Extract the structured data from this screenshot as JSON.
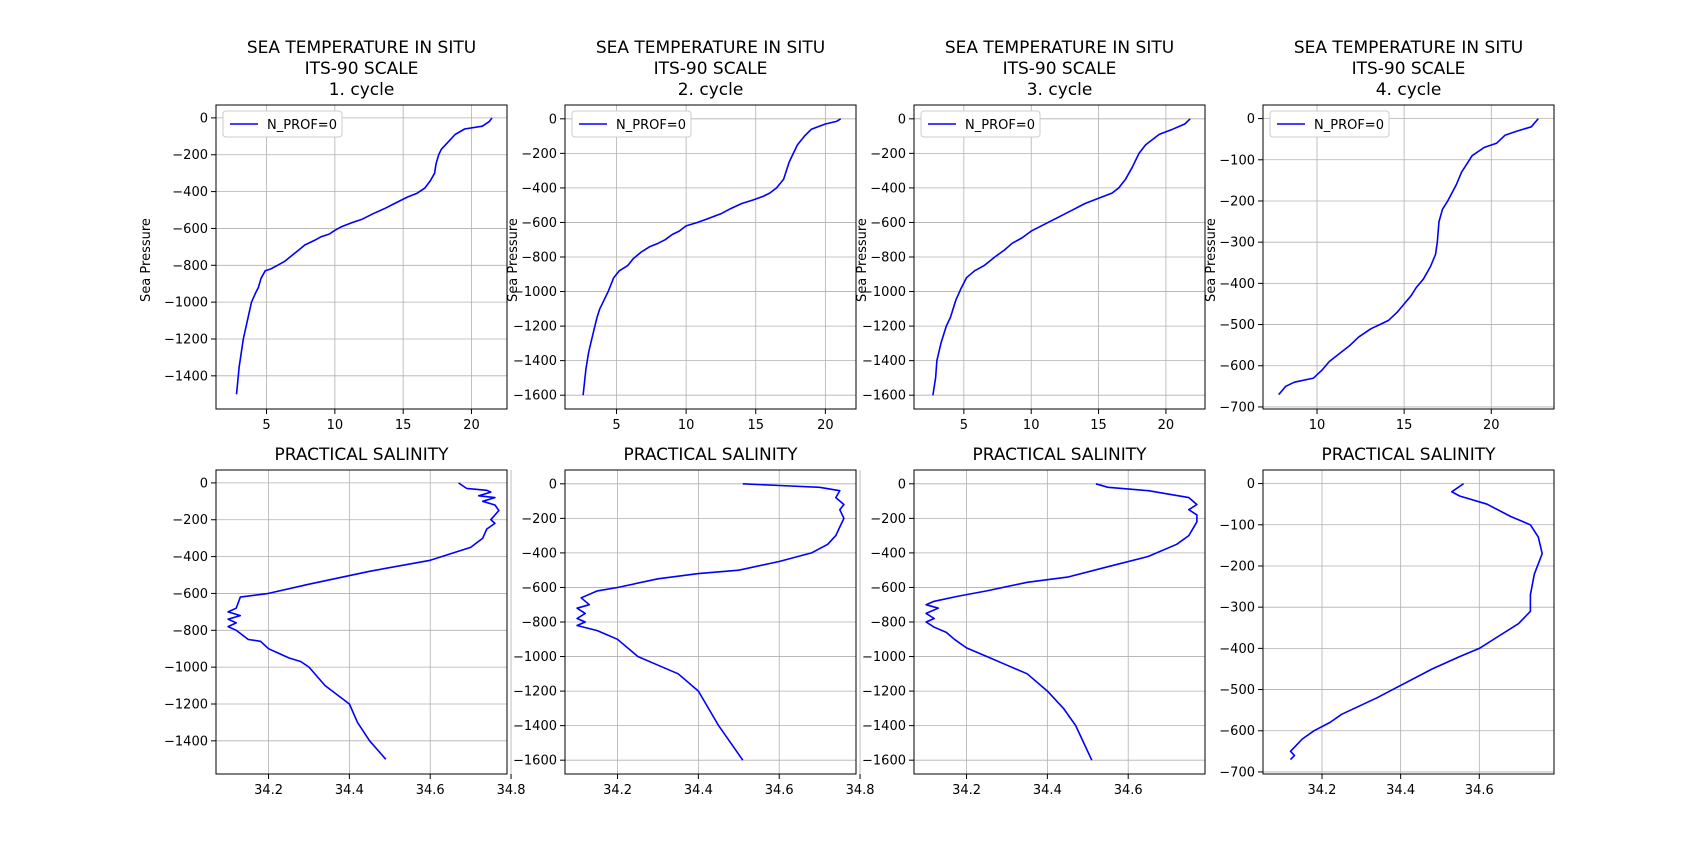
{
  "colors": {
    "series": "#0000ff",
    "grid": "#b0b0b0",
    "legend_border": "#cccccc"
  },
  "chart_data": [
    {
      "type": "line",
      "title": [
        "SEA TEMPERATURE IN SITU",
        "ITS-90 SCALE",
        "1. cycle"
      ],
      "ylabel": "Sea Pressure",
      "xlabel": "",
      "xlim": [
        1.3,
        22.6
      ],
      "ylim": [
        -1580,
        70
      ],
      "xticks": [
        5,
        10,
        15,
        20
      ],
      "yticks": [
        0,
        -200,
        -400,
        -600,
        -800,
        -1000,
        -1200,
        -1400
      ],
      "grid": true,
      "legend": {
        "position": "upper left",
        "entries": [
          "N_PROF=0"
        ]
      },
      "series": [
        {
          "name": "N_PROF=0",
          "x": [
            21.5,
            21.3,
            20.8,
            19.5,
            18.8,
            18.3,
            17.8,
            17.6,
            17.4,
            17.3,
            17.0,
            16.6,
            16.0,
            15.3,
            14.5,
            13.7,
            12.8,
            12.0,
            11.2,
            10.5,
            10.0,
            9.6,
            9.0,
            8.5,
            7.8,
            7.3,
            6.8,
            6.3,
            5.8,
            5.3,
            4.9,
            4.6,
            4.4,
            4.2,
            3.9,
            3.6,
            3.3,
            3.0,
            2.8
          ],
          "y": [
            0,
            -20,
            -45,
            -60,
            -90,
            -130,
            -170,
            -200,
            -250,
            -300,
            -340,
            -380,
            -410,
            -430,
            -460,
            -490,
            -520,
            -550,
            -570,
            -590,
            -610,
            -630,
            -645,
            -665,
            -690,
            -720,
            -750,
            -780,
            -800,
            -820,
            -830,
            -870,
            -920,
            -950,
            -1000,
            -1100,
            -1200,
            -1350,
            -1500
          ]
        }
      ]
    },
    {
      "type": "line",
      "title": [
        "SEA TEMPERATURE IN SITU",
        "ITS-90 SCALE",
        "2. cycle"
      ],
      "ylabel": "Sea Pressure",
      "xlabel": "",
      "xlim": [
        1.3,
        22.2
      ],
      "ylim": [
        -1680,
        80
      ],
      "xticks": [
        5,
        10,
        15,
        20
      ],
      "yticks": [
        0,
        -200,
        -400,
        -600,
        -800,
        -1000,
        -1200,
        -1400,
        -1600
      ],
      "grid": true,
      "legend": {
        "position": "upper left",
        "entries": [
          "N_PROF=0"
        ]
      },
      "series": [
        {
          "name": "N_PROF=0",
          "x": [
            21.1,
            20.8,
            20.0,
            19.0,
            18.5,
            18.0,
            17.7,
            17.4,
            17.2,
            17.0,
            16.5,
            16.0,
            15.5,
            14.8,
            14.0,
            13.2,
            12.5,
            11.5,
            10.8,
            10.0,
            9.5,
            9.0,
            8.5,
            8.0,
            7.4,
            6.8,
            6.2,
            5.8,
            5.2,
            4.8,
            4.4,
            4.1,
            3.8,
            3.6,
            3.3,
            3.0,
            2.8,
            2.6
          ],
          "y": [
            0,
            -15,
            -30,
            -60,
            -100,
            -150,
            -200,
            -250,
            -300,
            -350,
            -400,
            -430,
            -450,
            -470,
            -490,
            -520,
            -550,
            -580,
            -600,
            -620,
            -650,
            -670,
            -700,
            -720,
            -740,
            -770,
            -810,
            -850,
            -880,
            -920,
            -1000,
            -1050,
            -1100,
            -1150,
            -1250,
            -1350,
            -1450,
            -1600
          ]
        }
      ]
    },
    {
      "type": "line",
      "title": [
        "SEA TEMPERATURE IN SITU",
        "ITS-90 SCALE",
        "3. cycle"
      ],
      "ylabel": "Sea Pressure",
      "xlabel": "",
      "xlim": [
        1.3,
        22.9
      ],
      "ylim": [
        -1680,
        80
      ],
      "xticks": [
        5,
        10,
        15,
        20
      ],
      "yticks": [
        0,
        -200,
        -400,
        -600,
        -800,
        -1000,
        -1200,
        -1400,
        -1600
      ],
      "grid": true,
      "legend": {
        "position": "upper left",
        "entries": [
          "N_PROF=0"
        ]
      },
      "series": [
        {
          "name": "N_PROF=0",
          "x": [
            21.8,
            21.4,
            20.5,
            19.5,
            18.5,
            18.0,
            17.5,
            17.0,
            16.5,
            16.0,
            15.0,
            14.0,
            13.0,
            12.0,
            11.0,
            10.0,
            9.3,
            8.6,
            8.0,
            7.3,
            6.5,
            5.8,
            5.2,
            4.8,
            4.4,
            4.0,
            3.7,
            3.3,
            3.0,
            2.9,
            2.7
          ],
          "y": [
            0,
            -30,
            -60,
            -90,
            -150,
            -200,
            -280,
            -350,
            -400,
            -430,
            -460,
            -490,
            -530,
            -570,
            -610,
            -650,
            -690,
            -720,
            -760,
            -800,
            -850,
            -880,
            -920,
            -980,
            -1050,
            -1150,
            -1200,
            -1300,
            -1400,
            -1500,
            -1600
          ]
        }
      ]
    },
    {
      "type": "line",
      "title": [
        "SEA TEMPERATURE IN SITU",
        "ITS-90 SCALE",
        "4. cycle"
      ],
      "ylabel": "Sea Pressure",
      "xlabel": "",
      "xlim": [
        6.9,
        23.6
      ],
      "ylim": [
        -705,
        33
      ],
      "xticks": [
        10,
        15,
        20
      ],
      "yticks": [
        0,
        -100,
        -200,
        -300,
        -400,
        -500,
        -600,
        -700
      ],
      "grid": true,
      "legend": {
        "position": "upper left",
        "entries": [
          "N_PROF=0"
        ]
      },
      "series": [
        {
          "name": "N_PROF=0",
          "x": [
            22.7,
            22.3,
            21.5,
            20.8,
            20.3,
            19.6,
            18.9,
            18.6,
            18.3,
            18.0,
            17.5,
            17.2,
            17.0,
            16.9,
            16.8,
            16.5,
            16.1,
            15.7,
            15.4,
            15.0,
            14.6,
            14.1,
            13.6,
            13.1,
            12.4,
            11.9,
            11.3,
            10.7,
            10.3,
            9.8,
            8.7,
            8.2,
            8.0,
            7.8
          ],
          "y": [
            0,
            -20,
            -30,
            -40,
            -60,
            -70,
            -90,
            -110,
            -130,
            -160,
            -200,
            -220,
            -250,
            -300,
            -330,
            -360,
            -390,
            -410,
            -430,
            -450,
            -470,
            -490,
            -500,
            -510,
            -530,
            -550,
            -570,
            -590,
            -610,
            -630,
            -640,
            -650,
            -660,
            -670
          ]
        }
      ]
    },
    {
      "type": "line",
      "title": [
        "PRACTICAL SALINITY"
      ],
      "ylabel": "",
      "xlabel": "",
      "xlim": [
        34.07,
        34.79
      ],
      "ylim": [
        -1580,
        70
      ],
      "xticks": [
        34.2,
        34.4,
        34.6,
        34.8
      ],
      "yticks": [
        0,
        -200,
        -400,
        -600,
        -800,
        -1000,
        -1200,
        -1400
      ],
      "grid": true,
      "series": [
        {
          "name": "",
          "x": [
            34.67,
            34.69,
            34.74,
            34.75,
            34.72,
            34.76,
            34.73,
            34.76,
            34.77,
            34.75,
            34.76,
            34.74,
            34.73,
            34.7,
            34.6,
            34.45,
            34.3,
            34.2,
            34.13,
            34.12,
            34.1,
            34.13,
            34.1,
            34.12,
            34.1,
            34.12,
            34.15,
            34.18,
            34.2,
            34.22,
            34.25,
            34.28,
            34.3,
            34.34,
            34.4,
            34.42,
            34.45,
            34.49
          ],
          "y": [
            0,
            -30,
            -40,
            -50,
            -70,
            -80,
            -100,
            -120,
            -150,
            -200,
            -220,
            -250,
            -300,
            -350,
            -420,
            -480,
            -550,
            -600,
            -620,
            -680,
            -700,
            -720,
            -740,
            -760,
            -780,
            -800,
            -850,
            -860,
            -900,
            -920,
            -950,
            -970,
            -1000,
            -1100,
            -1200,
            -1300,
            -1400,
            -1500
          ]
        }
      ]
    },
    {
      "type": "line",
      "title": [
        "PRACTICAL SALINITY"
      ],
      "ylabel": "",
      "xlabel": "",
      "xlim": [
        34.07,
        34.79
      ],
      "ylim": [
        -1680,
        80
      ],
      "xticks": [
        34.2,
        34.4,
        34.6,
        34.8
      ],
      "yticks": [
        0,
        -200,
        -400,
        -600,
        -800,
        -1000,
        -1200,
        -1400,
        -1600
      ],
      "grid": true,
      "series": [
        {
          "name": "",
          "x": [
            34.51,
            34.6,
            34.7,
            34.75,
            34.74,
            34.76,
            34.75,
            34.76,
            34.75,
            34.74,
            34.72,
            34.68,
            34.6,
            34.5,
            34.4,
            34.3,
            34.2,
            34.15,
            34.11,
            34.13,
            34.1,
            34.12,
            34.1,
            34.12,
            34.1,
            34.15,
            34.2,
            34.25,
            34.3,
            34.35,
            34.4,
            34.45,
            34.51
          ],
          "y": [
            0,
            -10,
            -20,
            -40,
            -80,
            -120,
            -150,
            -200,
            -250,
            -300,
            -350,
            -400,
            -450,
            -500,
            -520,
            -550,
            -600,
            -620,
            -660,
            -700,
            -720,
            -750,
            -780,
            -800,
            -820,
            -850,
            -900,
            -1000,
            -1050,
            -1100,
            -1200,
            -1400,
            -1600
          ]
        }
      ]
    },
    {
      "type": "line",
      "title": [
        "PRACTICAL SALINITY"
      ],
      "ylabel": "",
      "xlabel": "",
      "xlim": [
        34.07,
        34.79
      ],
      "ylim": [
        -1680,
        80
      ],
      "xticks": [
        34.2,
        34.4,
        34.6
      ],
      "yticks": [
        0,
        -200,
        -400,
        -600,
        -800,
        -1000,
        -1200,
        -1400,
        -1600
      ],
      "grid": true,
      "series": [
        {
          "name": "",
          "x": [
            34.52,
            34.55,
            34.65,
            34.75,
            34.77,
            34.75,
            34.77,
            34.77,
            34.76,
            34.75,
            34.72,
            34.65,
            34.55,
            34.45,
            34.35,
            34.25,
            34.18,
            34.12,
            34.1,
            34.13,
            34.1,
            34.12,
            34.1,
            34.12,
            34.15,
            34.17,
            34.2,
            34.25,
            34.3,
            34.35,
            34.4,
            34.44,
            34.47,
            34.51
          ],
          "y": [
            0,
            -20,
            -40,
            -80,
            -120,
            -150,
            -180,
            -220,
            -260,
            -300,
            -350,
            -420,
            -480,
            -540,
            -570,
            -620,
            -650,
            -680,
            -700,
            -720,
            -750,
            -780,
            -800,
            -830,
            -860,
            -900,
            -950,
            -1000,
            -1050,
            -1100,
            -1200,
            -1300,
            -1400,
            -1600
          ]
        }
      ]
    },
    {
      "type": "line",
      "title": [
        "PRACTICAL SALINITY"
      ],
      "ylabel": "",
      "xlabel": "",
      "xlim": [
        34.05,
        34.79
      ],
      "ylim": [
        -705,
        33
      ],
      "xticks": [
        34.2,
        34.4,
        34.6
      ],
      "yticks": [
        0,
        -100,
        -200,
        -300,
        -400,
        -500,
        -600,
        -700
      ],
      "grid": true,
      "series": [
        {
          "name": "",
          "x": [
            34.56,
            34.53,
            34.55,
            34.62,
            34.68,
            34.73,
            34.75,
            34.76,
            34.74,
            34.73,
            34.73,
            34.7,
            34.65,
            34.6,
            34.55,
            34.48,
            34.4,
            34.34,
            34.25,
            34.22,
            34.18,
            34.15,
            34.13,
            34.12,
            34.13,
            34.12
          ],
          "y": [
            0,
            -20,
            -30,
            -50,
            -80,
            -100,
            -130,
            -170,
            -220,
            -270,
            -310,
            -340,
            -370,
            -400,
            -420,
            -450,
            -490,
            -520,
            -560,
            -580,
            -600,
            -620,
            -640,
            -650,
            -660,
            -670
          ]
        }
      ]
    }
  ]
}
